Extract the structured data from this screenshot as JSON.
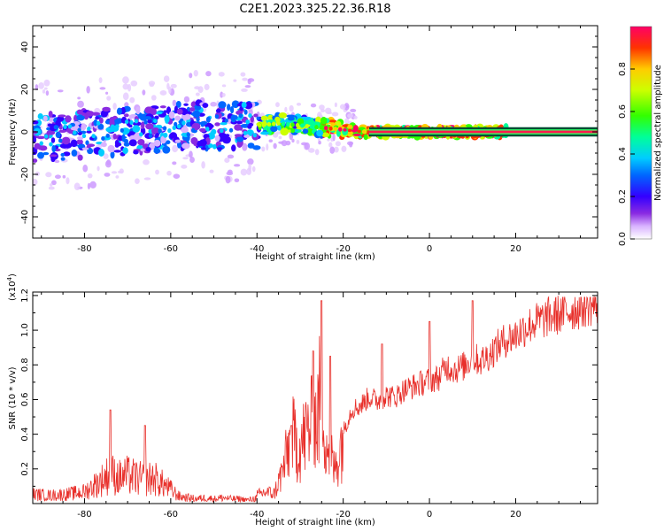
{
  "title": "C2E1.2023.325.22.36.R18",
  "chart_data": [
    {
      "type": "heatmap",
      "xlabel": "Height of straight line (km)",
      "ylabel": "Frequency (Hz)",
      "xlim": [
        -92,
        39
      ],
      "ylim": [
        -50,
        50
      ],
      "xticks": [
        -80,
        -60,
        -40,
        -20,
        0,
        20
      ],
      "yticks": [
        -40,
        -20,
        0,
        20,
        40
      ],
      "ridge": {
        "x": [
          -92,
          -85,
          -80,
          -75,
          -70,
          -65,
          -60,
          -55,
          -50,
          -45,
          -40,
          -35,
          -30,
          -25,
          -20,
          -15,
          -10,
          0,
          10,
          20,
          38
        ],
        "frequency": [
          -3,
          -2,
          -1,
          0,
          0,
          1,
          2,
          3,
          3,
          3,
          3,
          4,
          3,
          2,
          1,
          0,
          0,
          0,
          0,
          0,
          0
        ]
      },
      "colorbar": {
        "label": "Normalized spectral amplitude",
        "range": [
          0,
          1
        ],
        "ticks": [
          0.0,
          0.2,
          0.4,
          0.6,
          0.8
        ],
        "tick_labels": [
          "0.0",
          "0.2",
          "0.4",
          "0.6",
          "0.8"
        ],
        "colormap": [
          "#ffffff",
          "#d9b3ff",
          "#8a2be2",
          "#3300ff",
          "#0066ff",
          "#00ccff",
          "#00ff99",
          "#33ff00",
          "#ccff00",
          "#ffcc00",
          "#ff3300",
          "#ff0066"
        ]
      }
    },
    {
      "type": "line",
      "xlabel": "Height of straight line (km)",
      "ylabel": "SNR (10 * v/v)",
      "scale_note": "(x10",
      "scale_exp": "4",
      "scale_close": ")",
      "xlim": [
        -92,
        39
      ],
      "ylim": [
        0,
        1.22
      ],
      "xticks": [
        -80,
        -60,
        -40,
        -20,
        0,
        20
      ],
      "yticks": [
        0.2,
        0.4,
        0.6,
        0.8,
        1.0,
        1.2
      ],
      "ytick_labels": [
        "0.2",
        "0.4",
        "0.6",
        "0.8",
        "1.0",
        "1.2"
      ],
      "line_color": "#e8302b",
      "series": [
        {
          "x": [
            -92,
            -88,
            -84,
            -80,
            -78,
            -76,
            -74,
            -72,
            -70,
            -68,
            -66,
            -64,
            -62,
            -60,
            -58,
            -56,
            -54,
            -52,
            -50,
            -48,
            -46,
            -44,
            -42,
            -40,
            -38,
            -36,
            -34,
            -32,
            -30,
            -28,
            -26,
            -25,
            -24,
            -22,
            -20,
            -18,
            -16,
            -14,
            -12,
            -10,
            -8,
            -6,
            -4,
            -2,
            0,
            2,
            4,
            6,
            8,
            10,
            12,
            14,
            16,
            18,
            20,
            22,
            24,
            26,
            28,
            30,
            32,
            34,
            36,
            38
          ],
          "y": [
            0.08,
            0.07,
            0.08,
            0.1,
            0.15,
            0.2,
            0.26,
            0.22,
            0.24,
            0.22,
            0.2,
            0.22,
            0.17,
            0.12,
            0.06,
            0.05,
            0.04,
            0.05,
            0.04,
            0.05,
            0.04,
            0.04,
            0.03,
            0.05,
            0.07,
            0.06,
            0.2,
            0.4,
            0.35,
            0.45,
            0.5,
            0.75,
            0.4,
            0.2,
            0.42,
            0.55,
            0.57,
            0.62,
            0.6,
            0.63,
            0.62,
            0.66,
            0.68,
            0.7,
            0.72,
            0.73,
            0.8,
            0.78,
            0.8,
            0.85,
            0.83,
            0.87,
            0.92,
            0.96,
            0.98,
            1.02,
            1.05,
            1.07,
            1.09,
            1.1,
            1.12,
            1.13,
            1.15,
            1.16
          ]
        }
      ]
    }
  ]
}
